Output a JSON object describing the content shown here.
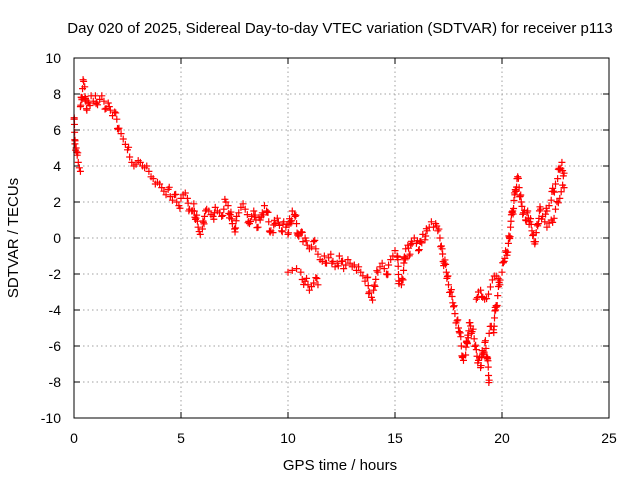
{
  "chart_data": {
    "type": "scatter",
    "title": "Day 020 of 2025, Sidereal Day-to-day VTEC variation (SDTVAR) for receiver p113",
    "xlabel": "GPS time / hours",
    "ylabel": "SDTVAR / TECUs",
    "xlim": [
      0,
      25
    ],
    "ylim": [
      -10,
      10
    ],
    "xticks": [
      0,
      5,
      10,
      15,
      20,
      25
    ],
    "yticks": [
      -10,
      -8,
      -6,
      -4,
      -2,
      0,
      2,
      4,
      6,
      8,
      10
    ],
    "grid": true,
    "marker": "+",
    "series": [
      {
        "name": "SDTVAR",
        "color": "#ff0000",
        "points": [
          [
            0.0,
            6.6
          ],
          [
            0.05,
            5.4
          ],
          [
            0.1,
            5.0
          ],
          [
            0.15,
            4.6
          ],
          [
            0.2,
            4.2
          ],
          [
            0.25,
            3.9
          ],
          [
            0.3,
            3.7
          ],
          [
            0.3,
            7.3
          ],
          [
            0.35,
            7.8
          ],
          [
            0.4,
            8.3
          ],
          [
            0.45,
            8.7
          ],
          [
            0.5,
            8.4
          ],
          [
            0.55,
            7.6
          ],
          [
            0.6,
            7.1
          ],
          [
            0.7,
            7.5
          ],
          [
            0.8,
            7.9
          ],
          [
            0.9,
            7.6
          ],
          [
            1.0,
            7.9
          ],
          [
            1.1,
            7.4
          ],
          [
            1.2,
            7.7
          ],
          [
            1.3,
            7.9
          ],
          [
            1.4,
            7.6
          ],
          [
            1.5,
            7.2
          ],
          [
            1.6,
            7.5
          ],
          [
            1.7,
            7.1
          ],
          [
            1.8,
            6.8
          ],
          [
            1.9,
            7.0
          ],
          [
            2.0,
            6.6
          ],
          [
            2.1,
            6.1
          ],
          [
            2.2,
            5.8
          ],
          [
            2.3,
            5.5
          ],
          [
            2.4,
            5.2
          ],
          [
            2.5,
            4.9
          ],
          [
            2.6,
            4.5
          ],
          [
            2.7,
            4.2
          ],
          [
            2.8,
            4.0
          ],
          [
            2.9,
            4.1
          ],
          [
            3.0,
            4.3
          ],
          [
            3.1,
            4.2
          ],
          [
            3.2,
            4.0
          ],
          [
            3.3,
            3.9
          ],
          [
            3.4,
            4.0
          ],
          [
            3.5,
            3.7
          ],
          [
            3.6,
            3.4
          ],
          [
            3.7,
            3.3
          ],
          [
            3.8,
            3.0
          ],
          [
            3.9,
            3.1
          ],
          [
            4.0,
            3.0
          ],
          [
            4.1,
            2.8
          ],
          [
            4.2,
            2.6
          ],
          [
            4.3,
            2.4
          ],
          [
            4.4,
            2.7
          ],
          [
            4.5,
            2.3
          ],
          [
            4.6,
            2.1
          ],
          [
            4.7,
            2.4
          ],
          [
            4.8,
            2.0
          ],
          [
            4.9,
            1.8
          ],
          [
            5.0,
            2.2
          ],
          [
            5.1,
            2.4
          ],
          [
            5.2,
            2.5
          ],
          [
            5.3,
            2.2
          ],
          [
            5.4,
            1.6
          ],
          [
            5.5,
            1.5
          ],
          [
            5.6,
            1.9
          ],
          [
            5.7,
            1.1
          ],
          [
            5.8,
            0.6
          ],
          [
            5.9,
            0.2
          ],
          [
            6.0,
            0.5
          ],
          [
            6.1,
            1.2
          ],
          [
            6.2,
            1.6
          ],
          [
            6.3,
            1.5
          ],
          [
            6.4,
            1.3
          ],
          [
            6.5,
            1.2
          ],
          [
            6.6,
            1.7
          ],
          [
            6.7,
            1.5
          ],
          [
            6.8,
            1.4
          ],
          [
            6.9,
            1.2
          ],
          [
            7.0,
            1.6
          ],
          [
            7.1,
            2.0
          ],
          [
            7.2,
            1.8
          ],
          [
            7.3,
            1.3
          ],
          [
            7.4,
            0.8
          ],
          [
            7.5,
            0.5
          ],
          [
            7.6,
            1.2
          ],
          [
            7.7,
            1.4
          ],
          [
            7.8,
            1.7
          ],
          [
            7.9,
            1.9
          ],
          [
            8.0,
            1.6
          ],
          [
            8.1,
            1.3
          ],
          [
            8.2,
            0.8
          ],
          [
            8.3,
            1.2
          ],
          [
            8.4,
            1.5
          ],
          [
            8.5,
            1.0
          ],
          [
            8.6,
            0.6
          ],
          [
            8.7,
            1.0
          ],
          [
            8.8,
            1.4
          ],
          [
            8.9,
            1.8
          ],
          [
            9.0,
            1.5
          ],
          [
            9.1,
            0.9
          ],
          [
            9.2,
            0.4
          ],
          [
            9.3,
            0.3
          ],
          [
            9.4,
            0.8
          ],
          [
            9.5,
            1.1
          ],
          [
            9.6,
            0.7
          ],
          [
            9.7,
            0.4
          ],
          [
            9.8,
            0.9
          ],
          [
            9.9,
            0.6
          ],
          [
            10.0,
            0.2
          ],
          [
            10.1,
            0.9
          ],
          [
            10.2,
            1.5
          ],
          [
            10.3,
            1.3
          ],
          [
            10.4,
            0.8
          ],
          [
            10.5,
            0.1
          ],
          [
            10.6,
            0.3
          ],
          [
            10.7,
            -0.2
          ],
          [
            10.8,
            0.0
          ],
          [
            10.9,
            -0.4
          ],
          [
            11.0,
            -0.6
          ],
          [
            10.0,
            -1.9
          ],
          [
            10.2,
            -1.8
          ],
          [
            10.4,
            -1.7
          ],
          [
            10.6,
            -1.9
          ],
          [
            10.8,
            -2.4
          ],
          [
            11.0,
            -2.9
          ],
          [
            11.1,
            -2.7
          ],
          [
            11.2,
            -2.5
          ],
          [
            11.3,
            -2.2
          ],
          [
            11.4,
            -2.6
          ],
          [
            11.1,
            -0.5
          ],
          [
            11.2,
            -0.2
          ],
          [
            11.3,
            -0.6
          ],
          [
            11.4,
            -0.9
          ],
          [
            11.5,
            -1.2
          ],
          [
            11.6,
            -1.3
          ],
          [
            11.7,
            -1.0
          ],
          [
            11.8,
            -1.4
          ],
          [
            11.9,
            -1.1
          ],
          [
            12.0,
            -0.9
          ],
          [
            12.1,
            -1.3
          ],
          [
            12.2,
            -1.6
          ],
          [
            12.3,
            -1.4
          ],
          [
            12.4,
            -1.0
          ],
          [
            12.5,
            -1.3
          ],
          [
            12.6,
            -1.7
          ],
          [
            12.7,
            -1.5
          ],
          [
            12.8,
            -1.2
          ],
          [
            12.9,
            -1.4
          ],
          [
            13.0,
            -1.6
          ],
          [
            13.1,
            -1.5
          ],
          [
            13.2,
            -1.8
          ],
          [
            13.3,
            -1.6
          ],
          [
            13.4,
            -1.9
          ],
          [
            13.5,
            -2.1
          ],
          [
            13.6,
            -2.4
          ],
          [
            13.7,
            -2.2
          ],
          [
            13.8,
            -3.0
          ],
          [
            13.9,
            -3.3
          ],
          [
            14.0,
            -2.9
          ],
          [
            14.1,
            -2.3
          ],
          [
            14.2,
            -1.9
          ],
          [
            14.3,
            -1.6
          ],
          [
            14.4,
            -1.4
          ],
          [
            14.5,
            -1.7
          ],
          [
            14.6,
            -2.0
          ],
          [
            14.7,
            -1.5
          ],
          [
            14.8,
            -1.2
          ],
          [
            14.9,
            -1.0
          ],
          [
            15.0,
            -0.7
          ],
          [
            15.1,
            -1.0
          ],
          [
            15.2,
            -2.4
          ],
          [
            15.3,
            -2.6
          ],
          [
            15.4,
            -1.8
          ],
          [
            15.5,
            -0.6
          ],
          [
            15.6,
            -0.4
          ],
          [
            15.7,
            -0.9
          ],
          [
            15.8,
            -0.3
          ],
          [
            15.9,
            0.0
          ],
          [
            16.0,
            -0.3
          ],
          [
            16.1,
            -0.7
          ],
          [
            16.2,
            -0.2
          ],
          [
            16.3,
            0.2
          ],
          [
            16.4,
            -0.1
          ],
          [
            16.5,
            0.4
          ],
          [
            16.6,
            0.6
          ],
          [
            16.7,
            0.9
          ],
          [
            16.8,
            0.6
          ],
          [
            16.9,
            0.8
          ],
          [
            17.0,
            0.4
          ],
          [
            17.1,
            0.0
          ],
          [
            17.2,
            -0.6
          ],
          [
            17.3,
            -1.4
          ],
          [
            17.4,
            -1.9
          ],
          [
            17.5,
            -2.6
          ],
          [
            17.6,
            -3.0
          ],
          [
            17.7,
            -3.6
          ],
          [
            17.8,
            -4.2
          ],
          [
            17.9,
            -4.6
          ],
          [
            18.0,
            -5.2
          ],
          [
            18.1,
            -6.0
          ],
          [
            18.2,
            -6.8
          ],
          [
            18.3,
            -6.5
          ],
          [
            18.4,
            -5.4
          ],
          [
            18.5,
            -4.7
          ],
          [
            18.6,
            -5.2
          ],
          [
            18.7,
            -5.6
          ],
          [
            18.8,
            -6.2
          ],
          [
            18.9,
            -6.8
          ],
          [
            19.0,
            -7.2
          ],
          [
            19.1,
            -6.4
          ],
          [
            19.2,
            -5.8
          ],
          [
            19.3,
            -6.6
          ],
          [
            19.4,
            -7.9
          ],
          [
            19.4,
            -5.3
          ],
          [
            19.5,
            -4.9
          ],
          [
            19.6,
            -5.1
          ],
          [
            19.7,
            -4.0
          ],
          [
            19.8,
            -3.2
          ],
          [
            19.9,
            -2.6
          ],
          [
            18.8,
            -3.4
          ],
          [
            18.9,
            -3.0
          ],
          [
            19.0,
            -2.9
          ],
          [
            19.1,
            -3.3
          ],
          [
            20.0,
            -1.9
          ],
          [
            20.1,
            -1.3
          ],
          [
            20.2,
            -0.8
          ],
          [
            20.3,
            -0.3
          ],
          [
            20.4,
            0.6
          ],
          [
            20.5,
            1.5
          ],
          [
            20.6,
            2.4
          ],
          [
            20.7,
            3.3
          ],
          [
            20.8,
            2.8
          ],
          [
            20.9,
            2.0
          ],
          [
            21.0,
            1.4
          ],
          [
            21.1,
            1.0
          ],
          [
            21.2,
            1.5
          ],
          [
            21.3,
            0.9
          ],
          [
            21.4,
            0.4
          ],
          [
            21.5,
            -0.2
          ],
          [
            21.6,
            0.3
          ],
          [
            21.7,
            0.8
          ],
          [
            21.8,
            1.6
          ],
          [
            21.9,
            1.2
          ],
          [
            22.0,
            0.9
          ],
          [
            22.1,
            1.5
          ],
          [
            22.2,
            1.8
          ],
          [
            22.3,
            2.1
          ],
          [
            22.4,
            2.6
          ],
          [
            22.5,
            3.0
          ],
          [
            22.6,
            3.3
          ],
          [
            22.7,
            3.8
          ],
          [
            22.8,
            4.2
          ],
          [
            22.9,
            3.6
          ],
          [
            22.1,
            0.6
          ],
          [
            22.3,
            1.0
          ],
          [
            22.5,
            1.6
          ],
          [
            22.7,
            2.2
          ],
          [
            22.9,
            2.8
          ]
        ]
      }
    ]
  }
}
